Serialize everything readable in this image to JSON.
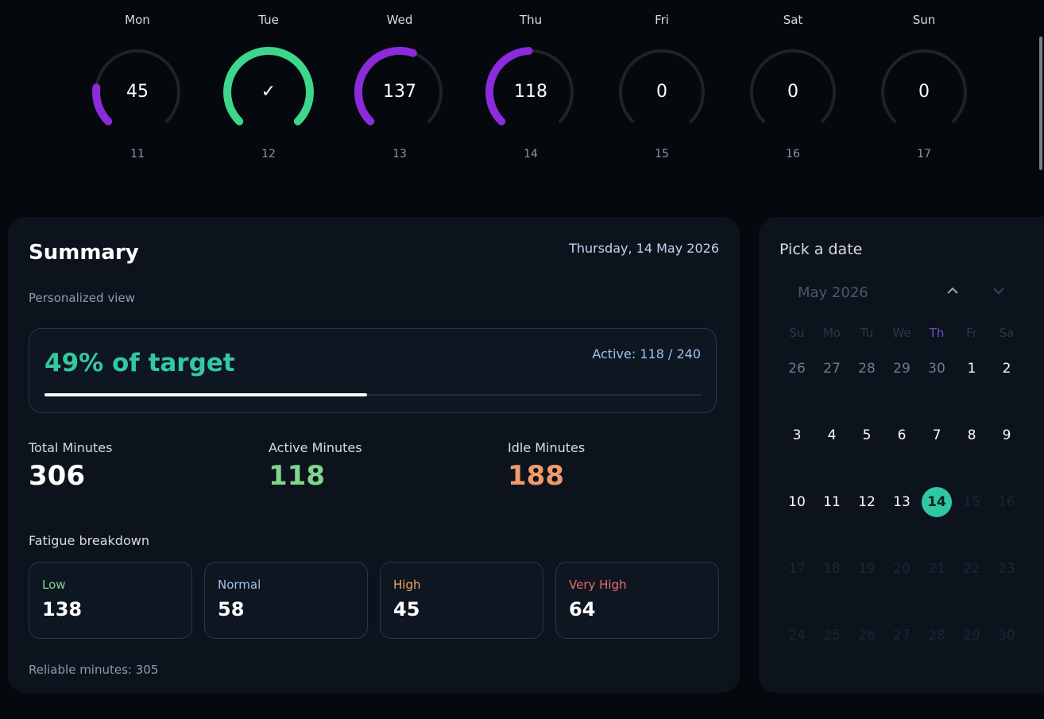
{
  "week": [
    {
      "day": "Mon",
      "value": "45",
      "date": "11",
      "progress": 0.19,
      "color": "#8b2bdc"
    },
    {
      "day": "Tue",
      "value": "✓",
      "date": "12",
      "progress": 1.0,
      "color": "#3dd68c"
    },
    {
      "day": "Wed",
      "value": "137",
      "date": "13",
      "progress": 0.57,
      "color": "#8b2bdc"
    },
    {
      "day": "Thu",
      "value": "118",
      "date": "14",
      "progress": 0.49,
      "color": "#8b2bdc"
    },
    {
      "day": "Fri",
      "value": "0",
      "date": "15",
      "progress": 0,
      "color": "#8b2bdc"
    },
    {
      "day": "Sat",
      "value": "0",
      "date": "16",
      "progress": 0,
      "color": "#8b2bdc"
    },
    {
      "day": "Sun",
      "value": "0",
      "date": "17",
      "progress": 0,
      "color": "#8b2bdc"
    }
  ],
  "summary": {
    "title": "Summary",
    "date": "Thursday, 14 May 2026",
    "subtitle": "Personalized view",
    "target_pct": "49% of target",
    "target_progress": 0.49,
    "active_label": "Active:",
    "active_value": "118",
    "active_sep": "/",
    "active_target": "240",
    "metrics": [
      {
        "label": "Total Minutes",
        "value": "306",
        "color": "#ffffff"
      },
      {
        "label": "Active Minutes",
        "value": "118",
        "color": "#7fd68e"
      },
      {
        "label": "Idle Minutes",
        "value": "188",
        "color": "#f29a6b"
      }
    ],
    "fatigue_title": "Fatigue breakdown",
    "fatigue": [
      {
        "label": "Low",
        "value": "138",
        "color": "#7fd68e"
      },
      {
        "label": "Normal",
        "value": "58",
        "color": "#9fc3ea"
      },
      {
        "label": "High",
        "value": "45",
        "color": "#f2a65e"
      },
      {
        "label": "Very High",
        "value": "64",
        "color": "#f06a6a"
      }
    ],
    "footer": "Reliable minutes: 305"
  },
  "calendar": {
    "title": "Pick a date",
    "month": "May 2026",
    "weekdays": [
      "Su",
      "Mo",
      "Tu",
      "We",
      "Th",
      "Fr",
      "Sa"
    ],
    "highlight_weekday": 4,
    "weeks": [
      [
        "26",
        "27",
        "28",
        "29",
        "30",
        "1",
        "2"
      ],
      [
        "3",
        "4",
        "5",
        "6",
        "7",
        "8",
        "9"
      ],
      [
        "10",
        "11",
        "12",
        "13",
        "14",
        "15",
        "16"
      ],
      [
        "17",
        "18",
        "19",
        "20",
        "21",
        "22",
        "23"
      ],
      [
        "24",
        "25",
        "26",
        "27",
        "28",
        "29",
        "30"
      ]
    ],
    "selected": "14",
    "accent": "#2ec9a3"
  }
}
